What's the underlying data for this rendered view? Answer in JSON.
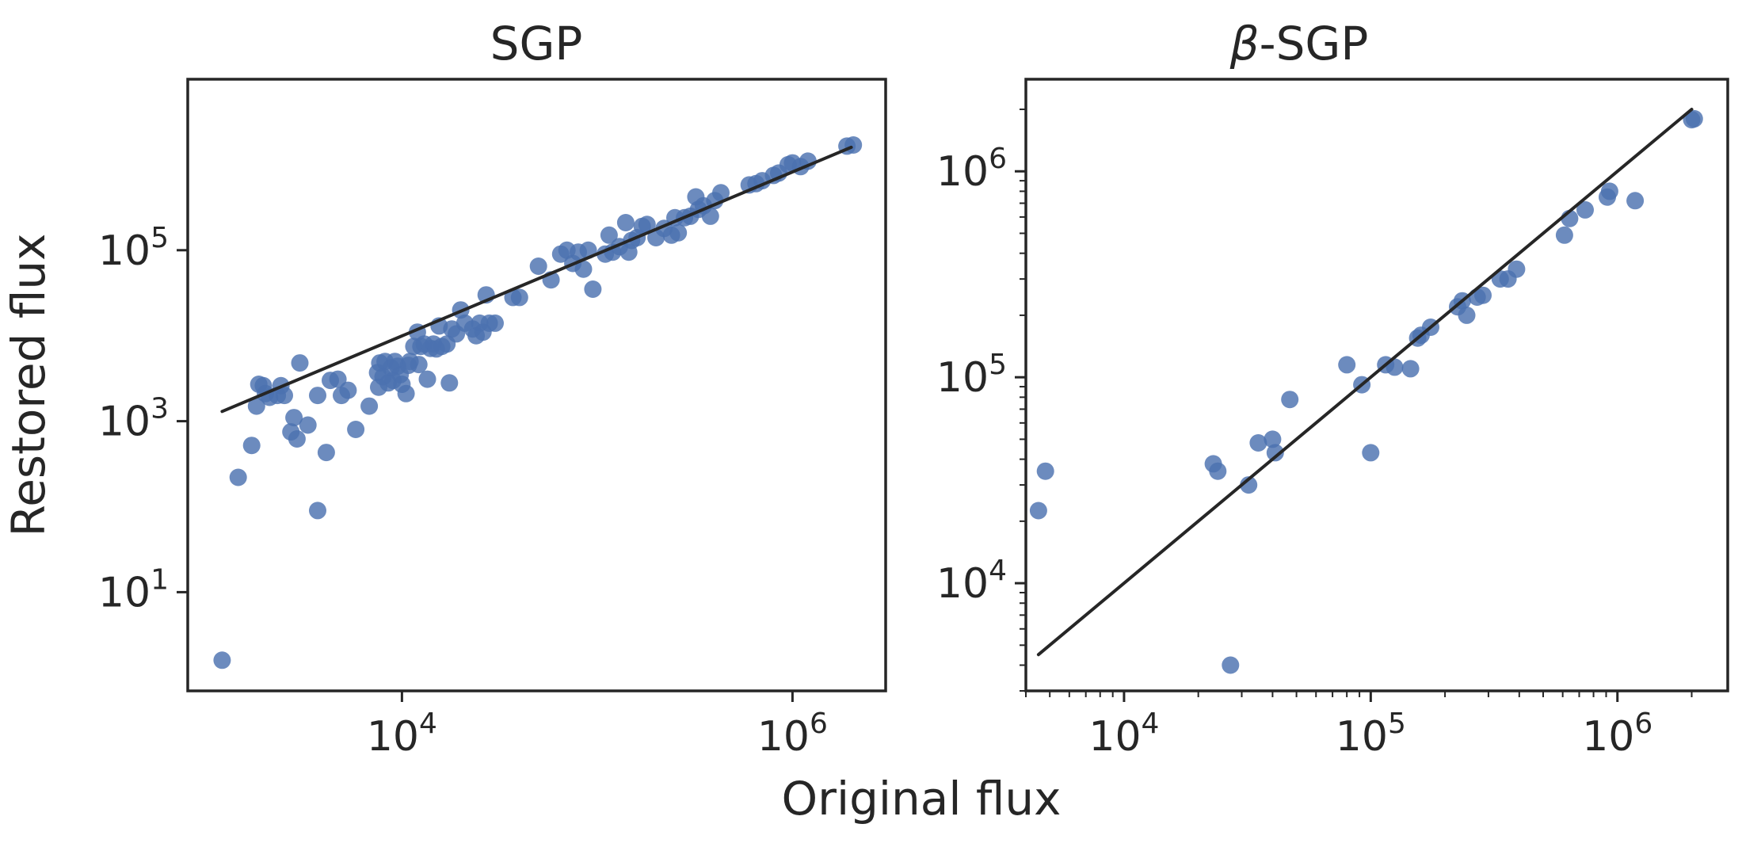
{
  "figure": {
    "xlabel": "Original flux",
    "ylabel": "Restored flux"
  },
  "chart_data": [
    {
      "type": "scatter",
      "title": "SGP",
      "xscale": "log",
      "yscale": "log",
      "xlim": [
        800,
        3000000
      ],
      "ylim": [
        0.7,
        10000000
      ],
      "xticks": [
        {
          "value": 10000,
          "base": "10",
          "exp": "4"
        },
        {
          "value": 1000000,
          "base": "10",
          "exp": "6"
        }
      ],
      "yticks": [
        {
          "value": 10,
          "base": "10",
          "exp": "1"
        },
        {
          "value": 1000,
          "base": "10",
          "exp": "3"
        },
        {
          "value": 100000,
          "base": "10",
          "exp": "5"
        }
      ],
      "grid": false,
      "point_color": "#4c72b0",
      "line_color": "#262626",
      "fit_line": {
        "x": [
          1200,
          2000000
        ],
        "y": [
          1300,
          1600000
        ]
      },
      "points": [
        [
          1200,
          1.6
        ],
        [
          1450,
          220
        ],
        [
          1700,
          520
        ],
        [
          1800,
          1500
        ],
        [
          1850,
          2700
        ],
        [
          1950,
          2600
        ],
        [
          2000,
          2100
        ],
        [
          2100,
          1900
        ],
        [
          2300,
          2000
        ],
        [
          2400,
          2600
        ],
        [
          2500,
          2000
        ],
        [
          2700,
          750
        ],
        [
          2800,
          1100
        ],
        [
          2900,
          620
        ],
        [
          3000,
          4800
        ],
        [
          3300,
          900
        ],
        [
          3700,
          90
        ],
        [
          3700,
          2000
        ],
        [
          4100,
          430
        ],
        [
          4300,
          3000
        ],
        [
          4700,
          3100
        ],
        [
          4900,
          2000
        ],
        [
          5300,
          2300
        ],
        [
          5800,
          800
        ],
        [
          6800,
          1500
        ],
        [
          7500,
          3700
        ],
        [
          7600,
          2500
        ],
        [
          7700,
          4800
        ],
        [
          8000,
          3300
        ],
        [
          8200,
          5000
        ],
        [
          8500,
          2800
        ],
        [
          8800,
          4200
        ],
        [
          9000,
          3000
        ],
        [
          9200,
          5000
        ],
        [
          9500,
          4400
        ],
        [
          9800,
          3500
        ],
        [
          10000,
          2700
        ],
        [
          10500,
          2100
        ],
        [
          10800,
          4500
        ],
        [
          11000,
          5000
        ],
        [
          11500,
          7500
        ],
        [
          12000,
          11000
        ],
        [
          12200,
          4600
        ],
        [
          12500,
          7500
        ],
        [
          13000,
          8000
        ],
        [
          13500,
          3100
        ],
        [
          14000,
          7100
        ],
        [
          14500,
          8000
        ],
        [
          15000,
          7000
        ],
        [
          15500,
          13000
        ],
        [
          16000,
          7500
        ],
        [
          17000,
          8000
        ],
        [
          17500,
          2800
        ],
        [
          18000,
          12000
        ],
        [
          19000,
          10500
        ],
        [
          20000,
          20000
        ],
        [
          21000,
          14000
        ],
        [
          23000,
          12000
        ],
        [
          24000,
          10000
        ],
        [
          25000,
          14000
        ],
        [
          26000,
          11000
        ],
        [
          27000,
          30000
        ],
        [
          28000,
          14000
        ],
        [
          30000,
          14000
        ],
        [
          37000,
          28000
        ],
        [
          40000,
          28000
        ],
        [
          50000,
          65000
        ],
        [
          58000,
          45000
        ],
        [
          65000,
          90000
        ],
        [
          70000,
          100000
        ],
        [
          75000,
          70000
        ],
        [
          80000,
          95000
        ],
        [
          85000,
          60000
        ],
        [
          90000,
          100000
        ],
        [
          95000,
          35000
        ],
        [
          110000,
          90000
        ],
        [
          115000,
          150000
        ],
        [
          120000,
          95000
        ],
        [
          130000,
          110000
        ],
        [
          140000,
          210000
        ],
        [
          145000,
          95000
        ],
        [
          150000,
          130000
        ],
        [
          160000,
          140000
        ],
        [
          170000,
          190000
        ],
        [
          180000,
          200000
        ],
        [
          200000,
          140000
        ],
        [
          220000,
          180000
        ],
        [
          240000,
          150000
        ],
        [
          250000,
          240000
        ],
        [
          260000,
          160000
        ],
        [
          280000,
          240000
        ],
        [
          300000,
          250000
        ],
        [
          320000,
          420000
        ],
        [
          330000,
          300000
        ],
        [
          350000,
          330000
        ],
        [
          380000,
          250000
        ],
        [
          400000,
          380000
        ],
        [
          430000,
          470000
        ],
        [
          600000,
          580000
        ],
        [
          650000,
          600000
        ],
        [
          700000,
          650000
        ],
        [
          800000,
          750000
        ],
        [
          850000,
          800000
        ],
        [
          950000,
          1000000
        ],
        [
          1000000,
          1050000
        ],
        [
          1100000,
          950000
        ],
        [
          1200000,
          1100000
        ],
        [
          1900000,
          1650000
        ],
        [
          2050000,
          1700000
        ]
      ]
    },
    {
      "type": "scatter",
      "title_symbol": "β",
      "title": "-SGP",
      "xscale": "log",
      "yscale": "log",
      "xlim": [
        4000,
        2800000
      ],
      "ylim": [
        3000,
        2800000
      ],
      "xticks": [
        {
          "value": 10000,
          "base": "10",
          "exp": "4"
        },
        {
          "value": 100000,
          "base": "10",
          "exp": "5"
        },
        {
          "value": 1000000,
          "base": "10",
          "exp": "6"
        }
      ],
      "yticks": [
        {
          "value": 10000,
          "base": "10",
          "exp": "4"
        },
        {
          "value": 100000,
          "base": "10",
          "exp": "5"
        },
        {
          "value": 1000000,
          "base": "10",
          "exp": "6"
        }
      ],
      "grid": false,
      "point_color": "#4c72b0",
      "line_color": "#262626",
      "fit_line": {
        "x": [
          4500,
          2000000
        ],
        "y": [
          4500,
          2000000
        ]
      },
      "points": [
        [
          4500,
          22500
        ],
        [
          4800,
          35000
        ],
        [
          23000,
          38000
        ],
        [
          24000,
          35000
        ],
        [
          27000,
          4000
        ],
        [
          32000,
          30000
        ],
        [
          35000,
          48000
        ],
        [
          40000,
          50000
        ],
        [
          41000,
          43000
        ],
        [
          47000,
          78000
        ],
        [
          80000,
          115000
        ],
        [
          92000,
          92000
        ],
        [
          100000,
          43000
        ],
        [
          115000,
          115000
        ],
        [
          125000,
          112000
        ],
        [
          145000,
          110000
        ],
        [
          155000,
          155000
        ],
        [
          160000,
          160000
        ],
        [
          175000,
          175000
        ],
        [
          225000,
          220000
        ],
        [
          235000,
          235000
        ],
        [
          245000,
          200000
        ],
        [
          270000,
          245000
        ],
        [
          285000,
          250000
        ],
        [
          335000,
          300000
        ],
        [
          360000,
          300000
        ],
        [
          390000,
          335000
        ],
        [
          610000,
          490000
        ],
        [
          640000,
          590000
        ],
        [
          740000,
          650000
        ],
        [
          910000,
          750000
        ],
        [
          930000,
          800000
        ],
        [
          1180000,
          720000
        ],
        [
          2000000,
          1780000
        ],
        [
          2050000,
          1800000
        ]
      ]
    }
  ]
}
